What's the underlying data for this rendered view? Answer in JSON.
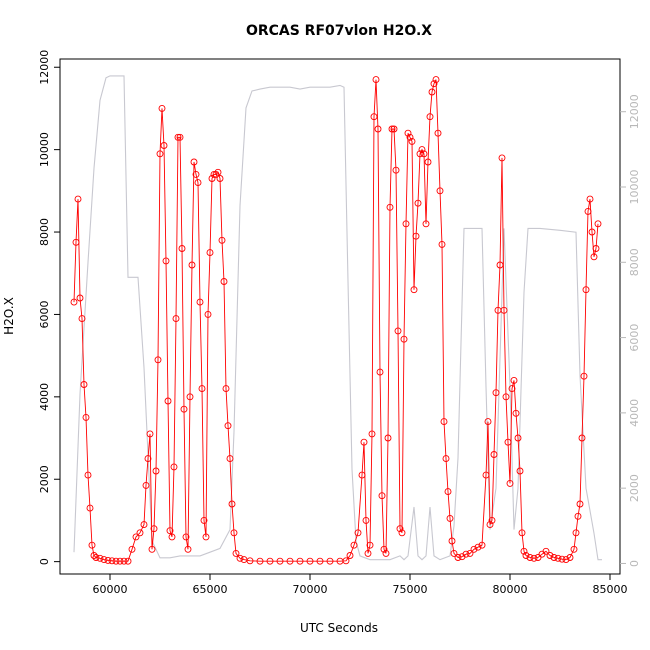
{
  "chart_data": {
    "type": "line",
    "title": "ORCAS RF07vlon H2O.X",
    "xlabel": "UTC Seconds",
    "ylabel": "H2O.X",
    "xlim": [
      57500,
      85500
    ],
    "ylim": [
      -300,
      12200
    ],
    "ylim_right": [
      -280,
      13400
    ],
    "x_ticks": [
      60000,
      65000,
      70000,
      75000,
      80000,
      85000
    ],
    "y_ticks": [
      0,
      2000,
      4000,
      6000,
      8000,
      10000,
      12000
    ],
    "y_ticks_right": [
      0,
      2000,
      4000,
      6000,
      8000,
      10000,
      12000
    ],
    "grid": false,
    "series": [
      {
        "name": "",
        "color": "#ff0000",
        "marker": "open-circle",
        "axis": "left",
        "points": [
          [
            58200,
            6300
          ],
          [
            58300,
            7750
          ],
          [
            58400,
            8800
          ],
          [
            58500,
            6400
          ],
          [
            58600,
            5900
          ],
          [
            58700,
            4300
          ],
          [
            58800,
            3500
          ],
          [
            58900,
            2100
          ],
          [
            59000,
            1300
          ],
          [
            59100,
            400
          ],
          [
            59200,
            150
          ],
          [
            59300,
            100
          ],
          [
            59500,
            80
          ],
          [
            59700,
            50
          ],
          [
            59900,
            30
          ],
          [
            60100,
            20
          ],
          [
            60300,
            10
          ],
          [
            60500,
            10
          ],
          [
            60700,
            10
          ],
          [
            60900,
            10
          ],
          [
            61100,
            300
          ],
          [
            61300,
            600
          ],
          [
            61500,
            700
          ],
          [
            61700,
            900
          ],
          [
            61800,
            1850
          ],
          [
            61900,
            2500
          ],
          [
            62000,
            3100
          ],
          [
            62100,
            300
          ],
          [
            62200,
            800
          ],
          [
            62300,
            2200
          ],
          [
            62400,
            4900
          ],
          [
            62500,
            9900
          ],
          [
            62600,
            11000
          ],
          [
            62700,
            10100
          ],
          [
            62800,
            7300
          ],
          [
            62900,
            3900
          ],
          [
            63000,
            750
          ],
          [
            63100,
            600
          ],
          [
            63200,
            2300
          ],
          [
            63300,
            5900
          ],
          [
            63400,
            10300
          ],
          [
            63500,
            10300
          ],
          [
            63600,
            7600
          ],
          [
            63700,
            3700
          ],
          [
            63800,
            600
          ],
          [
            63900,
            300
          ],
          [
            64000,
            4000
          ],
          [
            64100,
            7200
          ],
          [
            64200,
            9700
          ],
          [
            64300,
            9400
          ],
          [
            64400,
            9200
          ],
          [
            64500,
            6300
          ],
          [
            64600,
            4200
          ],
          [
            64700,
            1000
          ],
          [
            64800,
            600
          ],
          [
            64900,
            6000
          ],
          [
            65000,
            7500
          ],
          [
            65100,
            9300
          ],
          [
            65200,
            9400
          ],
          [
            65300,
            9400
          ],
          [
            65400,
            9450
          ],
          [
            65500,
            9300
          ],
          [
            65600,
            7800
          ],
          [
            65700,
            6800
          ],
          [
            65800,
            4200
          ],
          [
            65900,
            3300
          ],
          [
            66000,
            2500
          ],
          [
            66100,
            1400
          ],
          [
            66200,
            700
          ],
          [
            66300,
            200
          ],
          [
            66500,
            80
          ],
          [
            66700,
            50
          ],
          [
            67000,
            20
          ],
          [
            67500,
            10
          ],
          [
            68000,
            10
          ],
          [
            68500,
            10
          ],
          [
            69000,
            10
          ],
          [
            69500,
            10
          ],
          [
            70000,
            10
          ],
          [
            70500,
            10
          ],
          [
            71000,
            10
          ],
          [
            71500,
            10
          ],
          [
            71800,
            20
          ],
          [
            72000,
            150
          ],
          [
            72200,
            400
          ],
          [
            72400,
            700
          ],
          [
            72600,
            2100
          ],
          [
            72700,
            2900
          ],
          [
            72800,
            1000
          ],
          [
            72900,
            200
          ],
          [
            73000,
            400
          ],
          [
            73100,
            3100
          ],
          [
            73200,
            10800
          ],
          [
            73300,
            11700
          ],
          [
            73400,
            10500
          ],
          [
            73500,
            4600
          ],
          [
            73600,
            1600
          ],
          [
            73700,
            300
          ],
          [
            73800,
            200
          ],
          [
            73900,
            3000
          ],
          [
            74000,
            8600
          ],
          [
            74100,
            10500
          ],
          [
            74200,
            10500
          ],
          [
            74300,
            9500
          ],
          [
            74400,
            5600
          ],
          [
            74500,
            800
          ],
          [
            74600,
            700
          ],
          [
            74700,
            5400
          ],
          [
            74800,
            8200
          ],
          [
            74900,
            10400
          ],
          [
            75000,
            10300
          ],
          [
            75100,
            10200
          ],
          [
            75200,
            6600
          ],
          [
            75300,
            7900
          ],
          [
            75400,
            8700
          ],
          [
            75500,
            9900
          ],
          [
            75600,
            10000
          ],
          [
            75700,
            9900
          ],
          [
            75800,
            8200
          ],
          [
            75900,
            9700
          ],
          [
            76000,
            10800
          ],
          [
            76100,
            11400
          ],
          [
            76200,
            11600
          ],
          [
            76300,
            11700
          ],
          [
            76400,
            10400
          ],
          [
            76500,
            9000
          ],
          [
            76600,
            7700
          ],
          [
            76700,
            3400
          ],
          [
            76800,
            2500
          ],
          [
            76900,
            1700
          ],
          [
            77000,
            1050
          ],
          [
            77100,
            500
          ],
          [
            77200,
            200
          ],
          [
            77400,
            100
          ],
          [
            77600,
            120
          ],
          [
            77800,
            180
          ],
          [
            78000,
            200
          ],
          [
            78200,
            300
          ],
          [
            78400,
            350
          ],
          [
            78600,
            400
          ],
          [
            78800,
            2100
          ],
          [
            78900,
            3400
          ],
          [
            79000,
            900
          ],
          [
            79100,
            1000
          ],
          [
            79200,
            2600
          ],
          [
            79300,
            4100
          ],
          [
            79400,
            6100
          ],
          [
            79500,
            7200
          ],
          [
            79600,
            9800
          ],
          [
            79700,
            6100
          ],
          [
            79800,
            4000
          ],
          [
            79900,
            2900
          ],
          [
            80000,
            1900
          ],
          [
            80100,
            4200
          ],
          [
            80200,
            4400
          ],
          [
            80300,
            3600
          ],
          [
            80400,
            3000
          ],
          [
            80500,
            2200
          ],
          [
            80600,
            700
          ],
          [
            80700,
            250
          ],
          [
            80800,
            150
          ],
          [
            81000,
            100
          ],
          [
            81200,
            80
          ],
          [
            81400,
            100
          ],
          [
            81600,
            180
          ],
          [
            81800,
            250
          ],
          [
            82000,
            150
          ],
          [
            82200,
            100
          ],
          [
            82400,
            80
          ],
          [
            82600,
            60
          ],
          [
            82800,
            50
          ],
          [
            83000,
            100
          ],
          [
            83200,
            300
          ],
          [
            83300,
            700
          ],
          [
            83400,
            1100
          ],
          [
            83500,
            1400
          ],
          [
            83600,
            3000
          ],
          [
            83700,
            4500
          ],
          [
            83800,
            6600
          ],
          [
            83900,
            8500
          ],
          [
            84000,
            8800
          ],
          [
            84100,
            8000
          ],
          [
            84200,
            7400
          ],
          [
            84300,
            7600
          ],
          [
            84400,
            8200
          ]
        ]
      },
      {
        "name": "",
        "color": "#c8c8d0",
        "marker": "none",
        "axis": "right",
        "points": [
          [
            58200,
            300
          ],
          [
            58500,
            4500
          ],
          [
            58900,
            8000
          ],
          [
            59200,
            10500
          ],
          [
            59500,
            12300
          ],
          [
            59800,
            12900
          ],
          [
            60000,
            12950
          ],
          [
            60700,
            12950
          ],
          [
            60900,
            7600
          ],
          [
            61400,
            7600
          ],
          [
            61700,
            5200
          ],
          [
            62100,
            600
          ],
          [
            62500,
            150
          ],
          [
            63000,
            150
          ],
          [
            63500,
            200
          ],
          [
            64000,
            200
          ],
          [
            64500,
            200
          ],
          [
            65000,
            300
          ],
          [
            65500,
            400
          ],
          [
            66000,
            900
          ],
          [
            66200,
            3500
          ],
          [
            66500,
            9500
          ],
          [
            66800,
            12100
          ],
          [
            67100,
            12550
          ],
          [
            67500,
            12600
          ],
          [
            68000,
            12650
          ],
          [
            69000,
            12650
          ],
          [
            69500,
            12600
          ],
          [
            70000,
            12650
          ],
          [
            71000,
            12650
          ],
          [
            71500,
            12700
          ],
          [
            71700,
            12650
          ],
          [
            71900,
            7500
          ],
          [
            72100,
            2500
          ],
          [
            72300,
            600
          ],
          [
            72500,
            200
          ],
          [
            73000,
            100
          ],
          [
            74000,
            100
          ],
          [
            74500,
            200
          ],
          [
            74700,
            100
          ],
          [
            74900,
            200
          ],
          [
            75200,
            1500
          ],
          [
            75400,
            200
          ],
          [
            75600,
            100
          ],
          [
            75800,
            200
          ],
          [
            76000,
            1500
          ],
          [
            76200,
            200
          ],
          [
            76500,
            100
          ],
          [
            77000,
            200
          ],
          [
            77200,
            1000
          ],
          [
            77400,
            2800
          ],
          [
            77700,
            8900
          ],
          [
            78600,
            8900
          ],
          [
            78800,
            4700
          ],
          [
            79000,
            900
          ],
          [
            79300,
            2000
          ],
          [
            79700,
            8900
          ],
          [
            80000,
            4700
          ],
          [
            80200,
            900
          ],
          [
            80400,
            2000
          ],
          [
            80700,
            7200
          ],
          [
            80900,
            8900
          ],
          [
            81500,
            8900
          ],
          [
            82500,
            8850
          ],
          [
            83300,
            8800
          ],
          [
            83500,
            5000
          ],
          [
            83800,
            2000
          ],
          [
            84200,
            800
          ],
          [
            84400,
            100
          ],
          [
            84600,
            100
          ]
        ]
      }
    ]
  }
}
